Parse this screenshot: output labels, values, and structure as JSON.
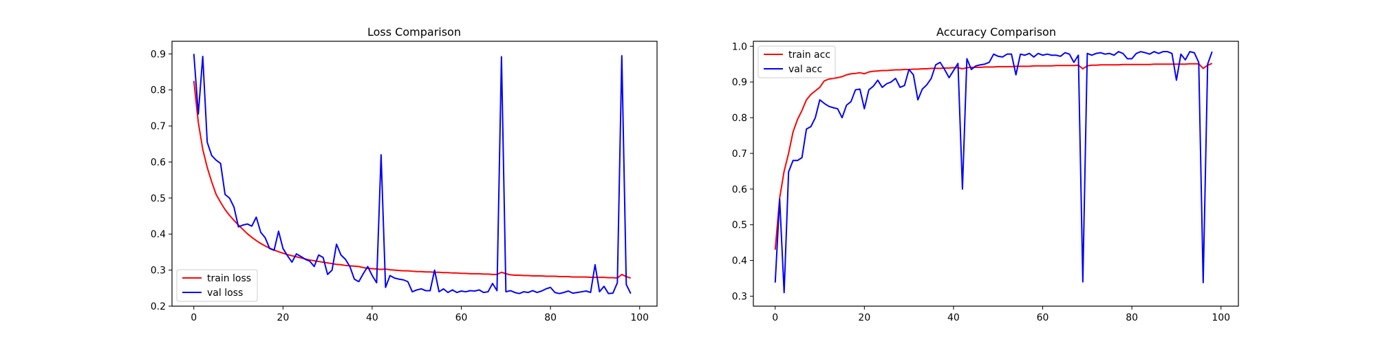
{
  "chart_data": [
    {
      "type": "line",
      "title": "Loss Comparison",
      "xlabel": "",
      "ylabel": "",
      "xlim": [
        -4.9,
        103.9
      ],
      "ylim": [
        0.2,
        0.935
      ],
      "xticks": [
        0,
        20,
        40,
        60,
        80,
        100
      ],
      "yticks": [
        0.2,
        0.3,
        0.4,
        0.5,
        0.6,
        0.7,
        0.8,
        0.9
      ],
      "grid": false,
      "legend_position": "lower-left",
      "series": [
        {
          "name": "train loss",
          "color": "#ff0000",
          "values": [
            0.825,
            0.71,
            0.635,
            0.585,
            0.545,
            0.51,
            0.488,
            0.468,
            0.452,
            0.438,
            0.425,
            0.413,
            0.401,
            0.391,
            0.382,
            0.374,
            0.367,
            0.361,
            0.356,
            0.351,
            0.347,
            0.343,
            0.34,
            0.337,
            0.334,
            0.331,
            0.328,
            0.326,
            0.324,
            0.322,
            0.32,
            0.318,
            0.316,
            0.315,
            0.313,
            0.312,
            0.311,
            0.31,
            0.307,
            0.305,
            0.304,
            0.303,
            0.302,
            0.303,
            0.301,
            0.3,
            0.299,
            0.298,
            0.298,
            0.297,
            0.296,
            0.296,
            0.295,
            0.295,
            0.294,
            0.294,
            0.293,
            0.293,
            0.292,
            0.292,
            0.291,
            0.291,
            0.29,
            0.29,
            0.29,
            0.289,
            0.289,
            0.288,
            0.288,
            0.294,
            0.29,
            0.287,
            0.286,
            0.286,
            0.285,
            0.285,
            0.284,
            0.284,
            0.284,
            0.283,
            0.283,
            0.283,
            0.282,
            0.282,
            0.282,
            0.281,
            0.281,
            0.281,
            0.281,
            0.28,
            0.28,
            0.28,
            0.28,
            0.279,
            0.279,
            0.278,
            0.288,
            0.282,
            0.278
          ]
        },
        {
          "name": "val loss",
          "color": "#0000ff",
          "values": [
            0.9,
            0.733,
            0.893,
            0.655,
            0.618,
            0.605,
            0.596,
            0.51,
            0.5,
            0.475,
            0.42,
            0.425,
            0.428,
            0.422,
            0.447,
            0.405,
            0.39,
            0.36,
            0.355,
            0.408,
            0.36,
            0.34,
            0.322,
            0.345,
            0.338,
            0.33,
            0.325,
            0.31,
            0.342,
            0.335,
            0.288,
            0.3,
            0.372,
            0.342,
            0.33,
            0.31,
            0.275,
            0.268,
            0.29,
            0.31,
            0.285,
            0.265,
            0.62,
            0.252,
            0.285,
            0.278,
            0.275,
            0.273,
            0.268,
            0.24,
            0.245,
            0.248,
            0.243,
            0.243,
            0.3,
            0.24,
            0.248,
            0.238,
            0.245,
            0.238,
            0.242,
            0.24,
            0.243,
            0.242,
            0.245,
            0.238,
            0.24,
            0.263,
            0.243,
            0.892,
            0.24,
            0.243,
            0.238,
            0.235,
            0.24,
            0.238,
            0.243,
            0.238,
            0.242,
            0.248,
            0.252,
            0.238,
            0.235,
            0.238,
            0.242,
            0.236,
            0.238,
            0.24,
            0.242,
            0.238,
            0.315,
            0.24,
            0.255,
            0.235,
            0.236,
            0.265,
            0.895,
            0.26,
            0.235
          ]
        }
      ]
    },
    {
      "type": "line",
      "title": "Accuracy Comparison",
      "xlabel": "",
      "ylabel": "",
      "xlim": [
        -4.9,
        103.9
      ],
      "ylim": [
        0.272,
        1.014
      ],
      "xticks": [
        0,
        20,
        40,
        60,
        80,
        100
      ],
      "yticks": [
        0.3,
        0.4,
        0.5,
        0.6,
        0.7,
        0.8,
        0.9,
        1.0
      ],
      "grid": false,
      "legend_position": "upper-left",
      "series": [
        {
          "name": "train acc",
          "color": "#ff0000",
          "values": [
            0.43,
            0.575,
            0.65,
            0.7,
            0.76,
            0.795,
            0.82,
            0.85,
            0.865,
            0.875,
            0.885,
            0.903,
            0.908,
            0.91,
            0.912,
            0.915,
            0.92,
            0.923,
            0.924,
            0.926,
            0.923,
            0.928,
            0.93,
            0.931,
            0.932,
            0.932,
            0.933,
            0.934,
            0.934,
            0.935,
            0.935,
            0.936,
            0.936,
            0.937,
            0.937,
            0.938,
            0.938,
            0.938,
            0.939,
            0.939,
            0.94,
            0.94,
            0.937,
            0.94,
            0.941,
            0.941,
            0.941,
            0.942,
            0.942,
            0.942,
            0.943,
            0.943,
            0.943,
            0.943,
            0.944,
            0.944,
            0.944,
            0.944,
            0.945,
            0.945,
            0.945,
            0.945,
            0.945,
            0.946,
            0.946,
            0.946,
            0.946,
            0.946,
            0.947,
            0.937,
            0.945,
            0.947,
            0.947,
            0.948,
            0.948,
            0.948,
            0.948,
            0.948,
            0.949,
            0.949,
            0.949,
            0.949,
            0.949,
            0.949,
            0.949,
            0.95,
            0.95,
            0.95,
            0.95,
            0.95,
            0.95,
            0.95,
            0.95,
            0.951,
            0.951,
            0.951,
            0.938,
            0.947,
            0.952
          ]
        },
        {
          "name": "val acc",
          "color": "#0000ff",
          "values": [
            0.338,
            0.572,
            0.31,
            0.648,
            0.68,
            0.68,
            0.688,
            0.768,
            0.775,
            0.8,
            0.85,
            0.84,
            0.832,
            0.828,
            0.825,
            0.8,
            0.835,
            0.845,
            0.878,
            0.88,
            0.825,
            0.878,
            0.888,
            0.905,
            0.885,
            0.895,
            0.9,
            0.91,
            0.885,
            0.89,
            0.935,
            0.92,
            0.85,
            0.88,
            0.892,
            0.91,
            0.948,
            0.955,
            0.935,
            0.912,
            0.932,
            0.952,
            0.6,
            0.965,
            0.935,
            0.945,
            0.948,
            0.95,
            0.955,
            0.978,
            0.972,
            0.97,
            0.978,
            0.978,
            0.92,
            0.978,
            0.975,
            0.98,
            0.97,
            0.98,
            0.975,
            0.978,
            0.975,
            0.975,
            0.972,
            0.982,
            0.978,
            0.955,
            0.975,
            0.34,
            0.98,
            0.975,
            0.98,
            0.982,
            0.978,
            0.98,
            0.975,
            0.985,
            0.98,
            0.965,
            0.965,
            0.98,
            0.985,
            0.982,
            0.978,
            0.985,
            0.98,
            0.985,
            0.985,
            0.98,
            0.905,
            0.978,
            0.962,
            0.985,
            0.982,
            0.955,
            0.338,
            0.95,
            0.985
          ]
        }
      ]
    }
  ]
}
